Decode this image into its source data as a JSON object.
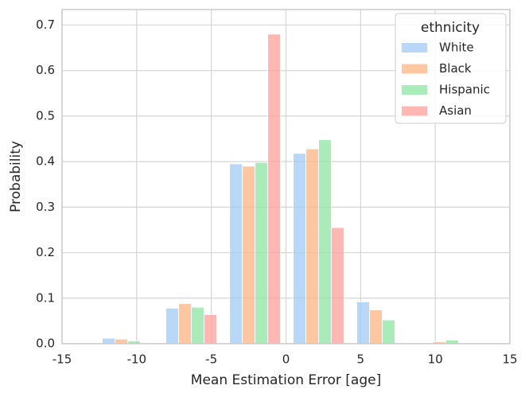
{
  "chart_data": {
    "type": "histogram",
    "x_label": "Mean Estimation Error [age]",
    "y_label": "Probability",
    "legend_title": "ethnicity",
    "legend_position": "upper right",
    "grid": true,
    "bins": [
      -12.73,
      -8.47,
      -4.2,
      0.06,
      4.32,
      8.58,
      12.84
    ],
    "series": [
      {
        "name": "White",
        "color": "#a1c9f4",
        "values": [
          0.012,
          0.078,
          0.395,
          0.418,
          0.092,
          0
        ]
      },
      {
        "name": "Black",
        "color": "#ffb482",
        "values": [
          0.01,
          0.088,
          0.39,
          0.428,
          0.074,
          0.004
        ]
      },
      {
        "name": "Hispanic",
        "color": "#8de5a1",
        "values": [
          0.006,
          0.08,
          0.398,
          0.448,
          0.052,
          0.008
        ]
      },
      {
        "name": "Asian",
        "color": "#ff9f9b",
        "values": [
          0,
          0.064,
          0.68,
          0.255,
          0,
          0
        ]
      }
    ],
    "xlim": [
      -15,
      15
    ],
    "xticks": [
      -15,
      -10,
      -5,
      0,
      5,
      10,
      15
    ],
    "ylim": [
      0,
      0.734
    ],
    "yticks": [
      {
        "value": 0,
        "label": "0.0"
      },
      {
        "value": 0.1,
        "label": "0.1"
      },
      {
        "value": 0.2,
        "label": "0.2"
      },
      {
        "value": 0.3,
        "label": "0.3"
      },
      {
        "value": 0.4,
        "label": "0.4"
      },
      {
        "value": 0.5,
        "label": "0.5"
      },
      {
        "value": 0.6,
        "label": "0.6"
      },
      {
        "value": 0.7,
        "label": "0.7"
      }
    ]
  }
}
